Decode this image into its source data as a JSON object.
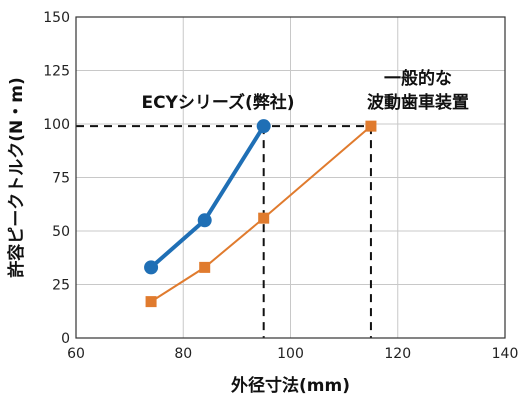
{
  "chart_data": {
    "type": "line",
    "xlabel": "外径寸法(mm)",
    "ylabel": "許容ピークトルク(N・m)",
    "xlim": [
      60,
      140
    ],
    "ylim": [
      0,
      150
    ],
    "x_ticks": [
      60,
      80,
      100,
      120,
      140
    ],
    "y_ticks": [
      0,
      25,
      50,
      75,
      100,
      125,
      150
    ],
    "grid": true,
    "series": [
      {
        "name": "ECYシリーズ(弊社)",
        "color": "#1f6fb5",
        "marker": "circle",
        "points": [
          {
            "x": 74,
            "y": 33
          },
          {
            "x": 84,
            "y": 55
          },
          {
            "x": 95,
            "y": 99
          }
        ]
      },
      {
        "name": "一般的な波動歯車装置",
        "color": "#e07b2e",
        "marker": "square",
        "points": [
          {
            "x": 74,
            "y": 17
          },
          {
            "x": 84,
            "y": 33
          },
          {
            "x": 95,
            "y": 56
          },
          {
            "x": 115,
            "y": 99
          }
        ]
      }
    ],
    "reference_line_y": 99,
    "annotations": [
      {
        "series": 0,
        "lines": [
          "ECYシリーズ(弊社)"
        ]
      },
      {
        "series": 1,
        "lines": [
          "一般的な",
          "波動歯車装置"
        ]
      }
    ]
  }
}
